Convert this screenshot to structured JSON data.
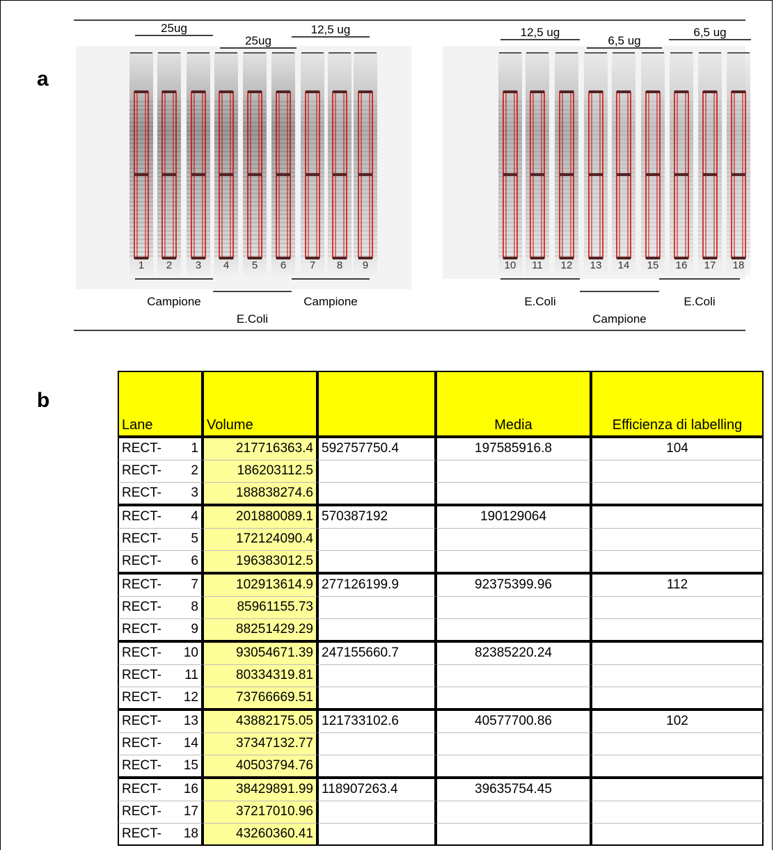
{
  "panel_a": {
    "label": "a",
    "top_labels": [
      "25ug",
      "25ug",
      "12,5 ug",
      "12,5 ug",
      "6,5 ug",
      "6,5 ug"
    ],
    "bottom_labels": [
      "Campione",
      "E.Coli",
      "Campione",
      "E.Coli",
      "Campione",
      "E.Coli"
    ],
    "lanes": [
      "1",
      "2",
      "3",
      "4",
      "5",
      "6",
      "7",
      "8",
      "9",
      "10",
      "11",
      "12",
      "13",
      "14",
      "15",
      "16",
      "17",
      "18"
    ]
  },
  "panel_b": {
    "label": "b",
    "headers": {
      "lane": "Lane",
      "volume": "Volume",
      "media": "Media",
      "efficiency": "Efficienza di labelling"
    },
    "rows": [
      {
        "lane": "RECT-",
        "n": "1",
        "volume": "217716363.4",
        "total": "592757750.4",
        "media": "197585916.8",
        "efficiency": "104"
      },
      {
        "lane": "RECT-",
        "n": "2",
        "volume": "186203112.5"
      },
      {
        "lane": "RECT-",
        "n": "3",
        "volume": "188838274.6"
      },
      {
        "lane": "RECT-",
        "n": "4",
        "volume": "201880089.1",
        "total": "570387192",
        "media": "190129064"
      },
      {
        "lane": "RECT-",
        "n": "5",
        "volume": "172124090.4"
      },
      {
        "lane": "RECT-",
        "n": "6",
        "volume": "196383012.5"
      },
      {
        "lane": "RECT-",
        "n": "7",
        "volume": "102913614.9",
        "total": "277126199.9",
        "media": "92375399.96",
        "efficiency": "112"
      },
      {
        "lane": "RECT-",
        "n": "8",
        "volume": "85961155.73"
      },
      {
        "lane": "RECT-",
        "n": "9",
        "volume": "88251429.29"
      },
      {
        "lane": "RECT-",
        "n": "10",
        "volume": "93054671.39",
        "total": "247155660.7",
        "media": "82385220.24"
      },
      {
        "lane": "RECT-",
        "n": "11",
        "volume": "80334319.81"
      },
      {
        "lane": "RECT-",
        "n": "12",
        "volume": "73766669.51"
      },
      {
        "lane": "RECT-",
        "n": "13",
        "volume": "43882175.05",
        "total": "121733102.6",
        "media": "40577700.86",
        "efficiency": "102"
      },
      {
        "lane": "RECT-",
        "n": "14",
        "volume": "37347132.77"
      },
      {
        "lane": "RECT-",
        "n": "15",
        "volume": "40503794.76"
      },
      {
        "lane": "RECT-",
        "n": "16",
        "volume": "38429891.99",
        "total": "118907263.4",
        "media": "39635754.45"
      },
      {
        "lane": "RECT-",
        "n": "17",
        "volume": "37217010.96"
      },
      {
        "lane": "RECT-",
        "n": "18",
        "volume": "43260360.41"
      }
    ]
  }
}
